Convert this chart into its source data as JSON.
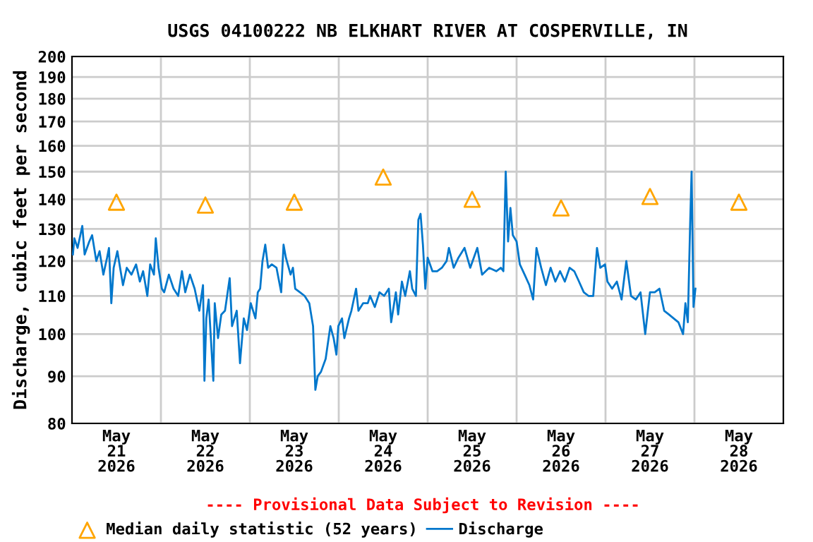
{
  "chart_data": {
    "type": "line",
    "title": "USGS 04100222 NB ELKHART RIVER AT COSPERVILLE, IN",
    "ylabel": "Discharge, cubic feet per second",
    "annotations": [
      "---- Provisional Data Subject to Revision ----"
    ],
    "log": "y",
    "grid": true,
    "legend": "bottom",
    "xlim": [
      "2026-05-21T00:00",
      "2026-05-29T00:00"
    ],
    "xticks": [
      {
        "value": "2026-05-21T12:00",
        "label": "May\n21\n2026"
      },
      {
        "value": "2026-05-22T12:00",
        "label": "May\n22\n2026"
      },
      {
        "value": "2026-05-23T12:00",
        "label": "May\n23\n2026"
      },
      {
        "value": "2026-05-24T12:00",
        "label": "May\n24\n2026"
      },
      {
        "value": "2026-05-25T12:00",
        "label": "May\n25\n2026"
      },
      {
        "value": "2026-05-26T12:00",
        "label": "May\n26\n2026"
      },
      {
        "value": "2026-05-27T12:00",
        "label": "May\n27\n2026"
      },
      {
        "value": "2026-05-28T12:00",
        "label": "May\n28\n2026"
      },
      {
        "value": "2026-05-22T00:00",
        "label": null
      },
      {
        "value": "2026-05-23T00:00",
        "label": null
      },
      {
        "value": "2026-05-24T00:00",
        "label": null
      },
      {
        "value": "2026-05-25T00:00",
        "label": null
      },
      {
        "value": "2026-05-26T00:00",
        "label": null
      },
      {
        "value": "2026-05-27T00:00",
        "label": null
      },
      {
        "value": "2026-05-28T00:00",
        "label": null
      }
    ],
    "ylim": [
      80,
      200
    ],
    "yticks": [
      80,
      90,
      100,
      110,
      120,
      130,
      140,
      150,
      160,
      170,
      180,
      190,
      200
    ],
    "series": [
      {
        "name": "Median daily statistic (52 years)",
        "type": "scatter",
        "marker": "triangle",
        "color": "#ffa500",
        "x": [
          "2026-05-21T12:00",
          "2026-05-22T12:00",
          "2026-05-23T12:00",
          "2026-05-24T12:00",
          "2026-05-25T12:00",
          "2026-05-26T12:00",
          "2026-05-27T12:00",
          "2026-05-28T12:00"
        ],
        "values": [
          139,
          138,
          139,
          148,
          140,
          137,
          141,
          139
        ]
      },
      {
        "name": "Discharge",
        "color": "#0077cc",
        "x": [
          "2026-05-21T00:15",
          "2026-05-21T00:38",
          "2026-05-21T01:31",
          "2026-05-21T02:47",
          "2026-05-21T03:25",
          "2026-05-21T04:40",
          "2026-05-21T05:26",
          "2026-05-21T06:34",
          "2026-05-21T07:27",
          "2026-05-21T08:28",
          "2026-05-21T09:28",
          "2026-05-21T09:59",
          "2026-05-21T10:37",
          "2026-05-21T11:15",
          "2026-05-21T12:15",
          "2026-05-21T13:08",
          "2026-05-21T13:46",
          "2026-05-21T14:47",
          "2026-05-21T16:03",
          "2026-05-21T17:18",
          "2026-05-21T18:19",
          "2026-05-21T19:12",
          "2026-05-21T20:20",
          "2026-05-21T21:06",
          "2026-05-21T22:07",
          "2026-05-21T22:37",
          "2026-05-21T23:22",
          "2026-05-22T00:15",
          "2026-05-22T00:53",
          "2026-05-22T02:09",
          "2026-05-22T03:25",
          "2026-05-22T04:40",
          "2026-05-22T05:41",
          "2026-05-22T06:34",
          "2026-05-22T07:50",
          "2026-05-22T09:06",
          "2026-05-22T10:22",
          "2026-05-22T11:22",
          "2026-05-22T11:45",
          "2026-05-22T12:15",
          "2026-05-22T12:53",
          "2026-05-22T14:09",
          "2026-05-22T14:32",
          "2026-05-22T15:25",
          "2026-05-22T16:18",
          "2026-05-22T17:18",
          "2026-05-22T18:34",
          "2026-05-22T19:12",
          "2026-05-22T20:28",
          "2026-05-22T21:21",
          "2026-05-22T22:22",
          "2026-05-22T23:14",
          "2026-05-23T00:15",
          "2026-05-23T01:31",
          "2026-05-23T02:09",
          "2026-05-23T02:47",
          "2026-05-23T03:25",
          "2026-05-23T04:10",
          "2026-05-23T04:56",
          "2026-05-23T05:56",
          "2026-05-23T07:12",
          "2026-05-23T08:28",
          "2026-05-23T09:06",
          "2026-05-23T09:44",
          "2026-05-23T11:00",
          "2026-05-23T11:38",
          "2026-05-23T12:15",
          "2026-05-23T13:31",
          "2026-05-23T14:47",
          "2026-05-23T16:03",
          "2026-05-23T17:04",
          "2026-05-23T17:41",
          "2026-05-23T18:19",
          "2026-05-23T19:12",
          "2026-05-23T20:28",
          "2026-05-23T21:44",
          "2026-05-23T22:37",
          "2026-05-23T23:22",
          "2026-05-23T23:53",
          "2026-05-24T00:53",
          "2026-05-24T01:31",
          "2026-05-24T02:47",
          "2026-05-24T03:25",
          "2026-05-24T04:41",
          "2026-05-24T05:19",
          "2026-05-24T06:34",
          "2026-05-24T07:50",
          "2026-05-24T08:28",
          "2026-05-24T09:44",
          "2026-05-24T10:59",
          "2026-05-24T12:15",
          "2026-05-24T13:31",
          "2026-05-24T14:09",
          "2026-05-24T15:25",
          "2026-05-24T16:02",
          "2026-05-24T17:03",
          "2026-05-24T17:56",
          "2026-05-24T19:12",
          "2026-05-24T19:50",
          "2026-05-24T20:50",
          "2026-05-24T21:29",
          "2026-05-24T22:05",
          "2026-05-24T22:43",
          "2026-05-24T23:22",
          "2026-05-25T00:00",
          "2026-05-25T01:17",
          "2026-05-25T02:33",
          "2026-05-25T03:50",
          "2026-05-25T05:06",
          "2026-05-25T05:44",
          "2026-05-25T07:01",
          "2026-05-25T08:18",
          "2026-05-25T09:57",
          "2026-05-25T11:29",
          "2026-05-25T13:24",
          "2026-05-25T14:41",
          "2026-05-25T16:36",
          "2026-05-25T18:31",
          "2026-05-25T19:47",
          "2026-05-25T20:26",
          "2026-05-25T21:04",
          "2026-05-25T21:42",
          "2026-05-25T22:20",
          "2026-05-25T22:59",
          "2026-05-26T00:00",
          "2026-05-26T00:53",
          "2026-05-26T02:10",
          "2026-05-26T03:27",
          "2026-05-26T04:28",
          "2026-05-26T05:22",
          "2026-05-26T06:38",
          "2026-05-26T07:55",
          "2026-05-26T09:11",
          "2026-05-26T10:28",
          "2026-05-26T11:44",
          "2026-05-26T13:01",
          "2026-05-26T14:18",
          "2026-05-26T15:34",
          "2026-05-26T16:51",
          "2026-05-26T18:08",
          "2026-05-26T19:24",
          "2026-05-26T20:41",
          "2026-05-26T21:42",
          "2026-05-26T22:36",
          "2026-05-26T23:52",
          "2026-05-27T00:31",
          "2026-05-27T01:47",
          "2026-05-27T03:04",
          "2026-05-27T04:20",
          "2026-05-27T05:37",
          "2026-05-27T06:53",
          "2026-05-27T08:10",
          "2026-05-27T09:27",
          "2026-05-27T10:43",
          "2026-05-27T12:00",
          "2026-05-27T13:17",
          "2026-05-27T14:33",
          "2026-05-27T15:50",
          "2026-05-27T17:07",
          "2026-05-27T18:23",
          "2026-05-27T19:40",
          "2026-05-27T20:56",
          "2026-05-27T21:34",
          "2026-05-27T22:13",
          "2026-05-27T22:51",
          "2026-05-27T23:14",
          "2026-05-27T23:45",
          "2026-05-28T00:16"
        ],
        "values": [
          122,
          127,
          124,
          131,
          122,
          126,
          128,
          120,
          123,
          116,
          121,
          124,
          108,
          118,
          123,
          117,
          113,
          118,
          116,
          119,
          114,
          117,
          110,
          119,
          116,
          127,
          118,
          112,
          111,
          116,
          112,
          110,
          117,
          111,
          116,
          112,
          106,
          113,
          89,
          104,
          109,
          89,
          108,
          99,
          105,
          106,
          115,
          102,
          106,
          93,
          104,
          101,
          108,
          104,
          111,
          112,
          120,
          125,
          118,
          119,
          118,
          111,
          125,
          121,
          116,
          118,
          112,
          111,
          110,
          108,
          102,
          87,
          90,
          91,
          94,
          102,
          99,
          95,
          102,
          104,
          99,
          104,
          106,
          112,
          106,
          108,
          108,
          110,
          107,
          111,
          110,
          112,
          103,
          111,
          105,
          114,
          110,
          117,
          112,
          110,
          133,
          135,
          125,
          112,
          121,
          117,
          117,
          118,
          120,
          124,
          118,
          121,
          124,
          118,
          124,
          116,
          118,
          117,
          118,
          117,
          150,
          126,
          137,
          128,
          126,
          119,
          116,
          113,
          109,
          124,
          118,
          113,
          118,
          114,
          117,
          114,
          118,
          117,
          114,
          111,
          110,
          110,
          124,
          118,
          119,
          114,
          112,
          114,
          109,
          120,
          110,
          109,
          111,
          100,
          111,
          111,
          112,
          106,
          105,
          104,
          103,
          100,
          108,
          103,
          132,
          150,
          107,
          112
        ]
      }
    ]
  }
}
